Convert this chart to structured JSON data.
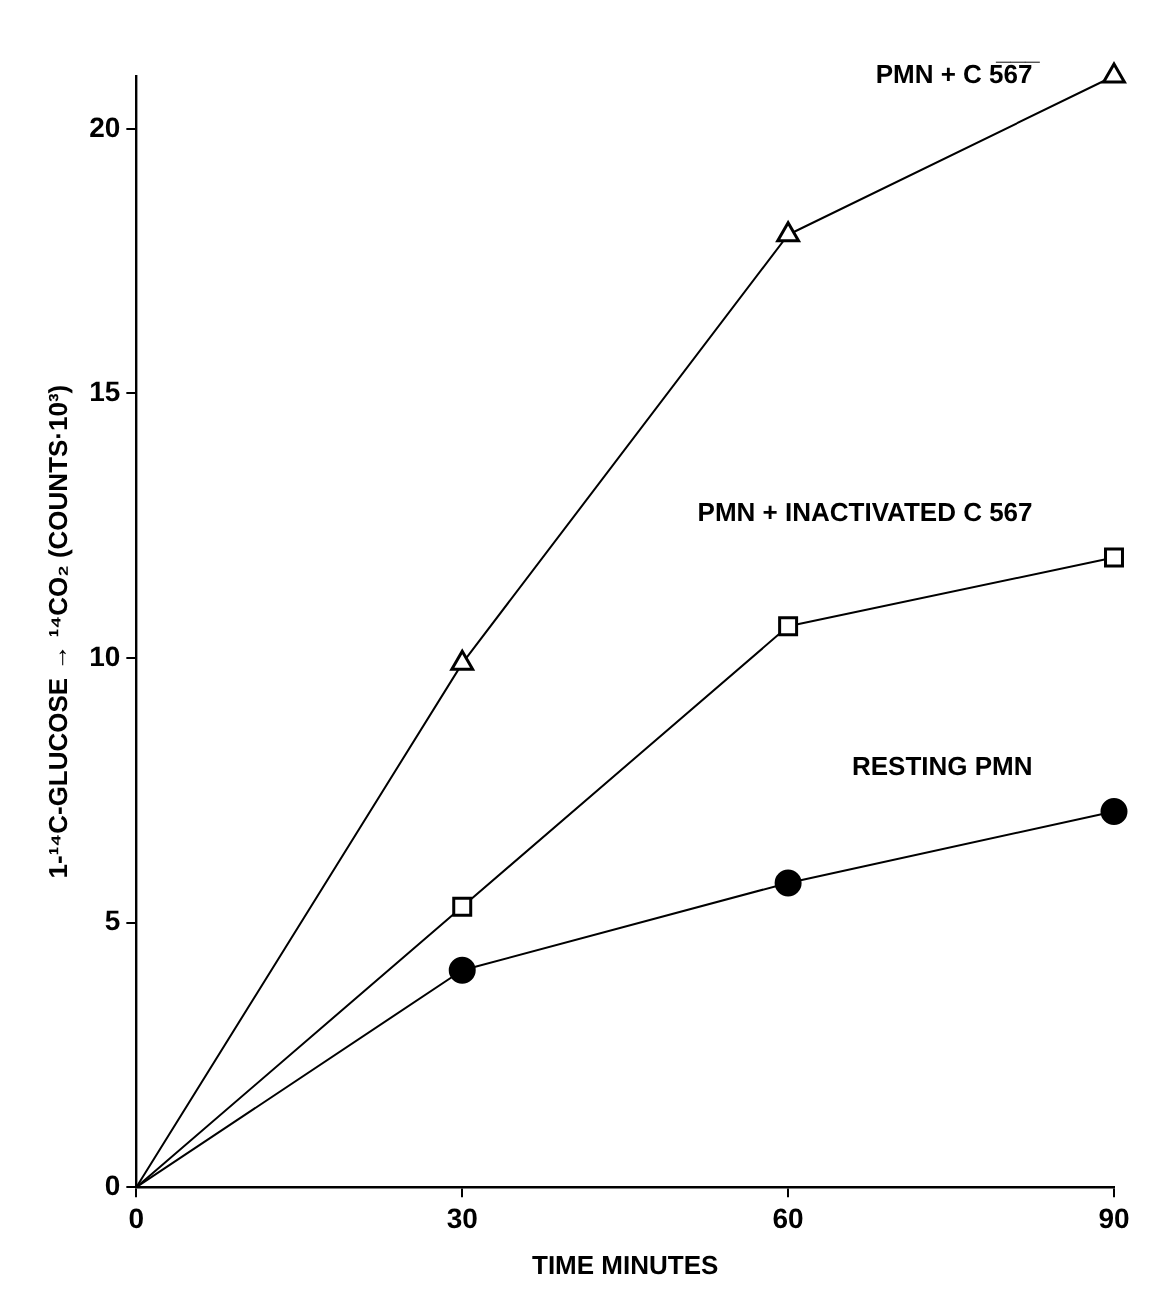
{
  "chart_data": {
    "type": "line",
    "xlabel": "TIME MINUTES",
    "ylabel": "1-¹⁴C-GLUCOSE → ¹⁴CO₂ (COUNTS·10³)",
    "x": [
      0,
      30,
      60,
      90
    ],
    "xlim": [
      0,
      90
    ],
    "xticks": [
      0,
      30,
      60,
      90
    ],
    "ylim": [
      0,
      21
    ],
    "yticks": [
      0,
      5,
      10,
      15,
      20
    ],
    "grid": false,
    "legend": false,
    "series": [
      {
        "name": "PMN + C 5̅6̅7̅",
        "color": "#000000",
        "marker": "triangle",
        "values": [
          0,
          9.9,
          18,
          21
        ]
      },
      {
        "name": "PMN + INACTIVATED C 567",
        "color": "#000000",
        "marker": "square",
        "values": [
          0,
          5.3,
          10.6,
          11.9
        ]
      },
      {
        "name": "RESTING PMN",
        "color": "#000000",
        "marker": "circle",
        "values": [
          0,
          4.1,
          5.75,
          7.1
        ]
      }
    ]
  }
}
